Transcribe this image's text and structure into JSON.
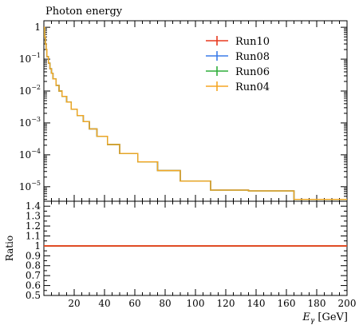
{
  "chart_data": {
    "title": "Photon energy",
    "type": "line",
    "xlabel": "E_γ [GeV]",
    "xlabel_main": "E",
    "xlabel_sub": "γ",
    "xlabel_unit": " [GeV]",
    "xlim": [
      0,
      200
    ],
    "x_ticks": [
      20,
      40,
      60,
      80,
      100,
      120,
      140,
      160,
      180,
      200
    ],
    "x_tick_labels": [
      "20",
      "40",
      "60",
      "80",
      "100",
      "120",
      "140",
      "160",
      "180",
      "200"
    ],
    "main_panel": {
      "yscale": "log",
      "ylim": [
        3.5e-06,
        1.6
      ],
      "y_ticks": [
        1,
        0.1,
        0.01,
        0.001,
        0.0001,
        1e-05
      ],
      "y_tick_labels": [
        {
          "base": "1",
          "exp": ""
        },
        {
          "base": "10",
          "exp": "−1"
        },
        {
          "base": "10",
          "exp": "−2"
        },
        {
          "base": "10",
          "exp": "−3"
        },
        {
          "base": "10",
          "exp": "−4"
        },
        {
          "base": "10",
          "exp": "−5"
        }
      ],
      "legend_position": "top-right",
      "series": [
        {
          "name": "Run10",
          "color": "#e8391e"
        },
        {
          "name": "Run08",
          "color": "#3b7ce8"
        },
        {
          "name": "Run06",
          "color": "#2fae3a"
        },
        {
          "name": "Run04",
          "color": "#f5a623"
        }
      ],
      "bins": [
        {
          "lo": 0,
          "hi": 0.5,
          "y": 1.0
        },
        {
          "lo": 0.5,
          "hi": 1,
          "y": 0.5
        },
        {
          "lo": 1,
          "hi": 1.5,
          "y": 0.3
        },
        {
          "lo": 1.5,
          "hi": 2,
          "y": 0.2
        },
        {
          "lo": 2,
          "hi": 3,
          "y": 0.12
        },
        {
          "lo": 3,
          "hi": 4,
          "y": 0.075
        },
        {
          "lo": 4,
          "hi": 5,
          "y": 0.05
        },
        {
          "lo": 5,
          "hi": 6,
          "y": 0.036
        },
        {
          "lo": 6,
          "hi": 8,
          "y": 0.024
        },
        {
          "lo": 8,
          "hi": 10,
          "y": 0.015
        },
        {
          "lo": 10,
          "hi": 12,
          "y": 0.01
        },
        {
          "lo": 12,
          "hi": 15,
          "y": 0.0068
        },
        {
          "lo": 15,
          "hi": 18,
          "y": 0.0045
        },
        {
          "lo": 18,
          "hi": 22,
          "y": 0.0027
        },
        {
          "lo": 22,
          "hi": 26,
          "y": 0.0017
        },
        {
          "lo": 26,
          "hi": 30,
          "y": 0.0011
        },
        {
          "lo": 30,
          "hi": 35,
          "y": 0.00065
        },
        {
          "lo": 35,
          "hi": 42,
          "y": 0.00038
        },
        {
          "lo": 42,
          "hi": 50,
          "y": 0.00021
        },
        {
          "lo": 50,
          "hi": 62,
          "y": 0.00011
        },
        {
          "lo": 62,
          "hi": 75,
          "y": 6e-05
        },
        {
          "lo": 75,
          "hi": 90,
          "y": 3.2e-05
        },
        {
          "lo": 90,
          "hi": 110,
          "y": 1.5e-05
        },
        {
          "lo": 110,
          "hi": 135,
          "y": 7.8e-06
        },
        {
          "lo": 135,
          "hi": 165,
          "y": 7.4e-06
        },
        {
          "lo": 165,
          "hi": 200,
          "y": 4e-06
        }
      ]
    },
    "ratio_panel": {
      "ylabel": "Ratio",
      "ylim": [
        0.5,
        1.45
      ],
      "y_ticks": [
        0.5,
        0.6,
        0.7,
        0.8,
        0.9,
        1.0,
        1.1,
        1.2,
        1.3,
        1.4
      ],
      "y_tick_labels": [
        "0.5",
        "0.6",
        "0.7",
        "0.8",
        "0.9",
        "1",
        "1.1",
        "1.2",
        "1.3",
        "1.4"
      ],
      "ratio_value": 1.0
    }
  }
}
